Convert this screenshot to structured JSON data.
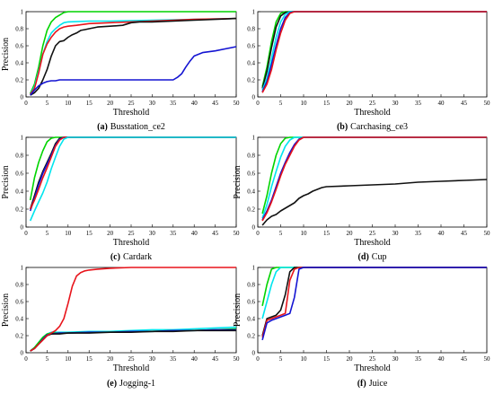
{
  "chart_data": [
    {
      "type": "line",
      "caption_letter": "(a)",
      "caption_name": "Busstation_ce2",
      "xlabel": "Threshold",
      "ylabel": "Precision",
      "xlim": [
        0,
        50
      ],
      "ylim": [
        0,
        1
      ],
      "x_ticks": [
        "0",
        "5",
        "10",
        "15",
        "20",
        "25",
        "30",
        "35",
        "40",
        "45",
        "50"
      ],
      "y_ticks": [
        "0",
        "0.2",
        "0.4",
        "0.6",
        "0.8",
        "1"
      ],
      "series": [
        {
          "color": "#00d400",
          "x": [
            1,
            2,
            3,
            4,
            5,
            6,
            7,
            8,
            9,
            10,
            12,
            15,
            20,
            30,
            40,
            50
          ],
          "y": [
            0.04,
            0.15,
            0.35,
            0.6,
            0.78,
            0.88,
            0.93,
            0.96,
            0.99,
            1.0,
            1.0,
            1.0,
            1.0,
            1.0,
            1.0,
            1.0
          ]
        },
        {
          "color": "#00e5ee",
          "x": [
            1,
            2,
            3,
            4,
            5,
            6,
            7,
            8,
            9,
            10,
            15,
            20,
            30,
            40,
            50
          ],
          "y": [
            0.03,
            0.12,
            0.3,
            0.5,
            0.65,
            0.75,
            0.8,
            0.84,
            0.87,
            0.88,
            0.89,
            0.89,
            0.9,
            0.91,
            0.92
          ]
        },
        {
          "color": "#e8141b",
          "x": [
            1,
            2,
            3,
            4,
            5,
            6,
            7,
            8,
            9,
            10,
            12,
            15,
            20,
            25,
            30,
            40,
            50
          ],
          "y": [
            0.03,
            0.1,
            0.28,
            0.5,
            0.62,
            0.7,
            0.76,
            0.8,
            0.82,
            0.83,
            0.84,
            0.86,
            0.87,
            0.88,
            0.89,
            0.91,
            0.92
          ]
        },
        {
          "color": "#111111",
          "x": [
            1,
            2,
            3,
            4,
            5,
            6,
            7,
            8,
            9,
            10,
            11,
            12,
            13,
            14,
            15,
            17,
            20,
            23,
            25,
            27,
            30,
            40,
            50
          ],
          "y": [
            0.02,
            0.05,
            0.1,
            0.2,
            0.32,
            0.48,
            0.6,
            0.65,
            0.66,
            0.7,
            0.73,
            0.75,
            0.78,
            0.79,
            0.8,
            0.82,
            0.83,
            0.84,
            0.87,
            0.88,
            0.88,
            0.9,
            0.92
          ]
        },
        {
          "color": "#1414d2",
          "x": [
            1,
            2,
            3,
            4,
            5,
            6,
            7,
            8,
            10,
            15,
            20,
            25,
            30,
            35,
            36,
            37,
            38,
            39,
            40,
            42,
            45,
            48,
            50
          ],
          "y": [
            0.02,
            0.08,
            0.13,
            0.16,
            0.18,
            0.19,
            0.19,
            0.2,
            0.2,
            0.2,
            0.2,
            0.2,
            0.2,
            0.2,
            0.23,
            0.27,
            0.35,
            0.42,
            0.48,
            0.52,
            0.54,
            0.57,
            0.59
          ]
        }
      ]
    },
    {
      "type": "line",
      "caption_letter": "(b)",
      "caption_name": "Carchasing_ce3",
      "xlabel": "Threshold",
      "ylabel": "",
      "xlim": [
        0,
        50
      ],
      "ylim": [
        0,
        1
      ],
      "x_ticks": [
        "0",
        "5",
        "10",
        "15",
        "20",
        "25",
        "30",
        "35",
        "40",
        "45",
        "50"
      ],
      "y_ticks": [
        "0",
        "0.2",
        "0.4",
        "0.6",
        "0.8",
        "1"
      ],
      "series": [
        {
          "color": "#00d400",
          "x": [
            1,
            2,
            3,
            4,
            5,
            6,
            7,
            10,
            50
          ],
          "y": [
            0.12,
            0.35,
            0.65,
            0.88,
            0.98,
            1.0,
            1.0,
            1.0,
            1.0
          ]
        },
        {
          "color": "#111111",
          "x": [
            1,
            2,
            3,
            4,
            5,
            6,
            7,
            8,
            10,
            50
          ],
          "y": [
            0.1,
            0.3,
            0.58,
            0.82,
            0.95,
            0.99,
            1.0,
            1.0,
            1.0,
            1.0
          ]
        },
        {
          "color": "#00e5ee",
          "x": [
            1,
            2,
            3,
            4,
            5,
            6,
            7,
            8,
            10,
            50
          ],
          "y": [
            0.08,
            0.22,
            0.45,
            0.7,
            0.88,
            0.97,
            1.0,
            1.0,
            1.0,
            1.0
          ]
        },
        {
          "color": "#1414d2",
          "x": [
            1,
            2,
            3,
            4,
            5,
            6,
            7,
            8,
            9,
            10,
            50
          ],
          "y": [
            0.06,
            0.18,
            0.38,
            0.6,
            0.8,
            0.93,
            0.99,
            1.0,
            1.0,
            1.0,
            1.0
          ]
        },
        {
          "color": "#e8141b",
          "x": [
            1,
            2,
            3,
            4,
            5,
            6,
            7,
            8,
            9,
            10,
            50
          ],
          "y": [
            0.05,
            0.15,
            0.32,
            0.55,
            0.75,
            0.9,
            0.98,
            1.0,
            1.0,
            1.0,
            1.0
          ]
        }
      ]
    },
    {
      "type": "line",
      "caption_letter": "(c)",
      "caption_name": "Cardark",
      "xlabel": "Threshold",
      "ylabel": "Precision",
      "xlim": [
        0,
        50
      ],
      "ylim": [
        0,
        1
      ],
      "x_ticks": [
        "0",
        "5",
        "10",
        "15",
        "20",
        "25",
        "30",
        "35",
        "40",
        "45",
        "50"
      ],
      "y_ticks": [
        "0",
        "0.2",
        "0.4",
        "0.6",
        "0.8",
        "1"
      ],
      "series": [
        {
          "color": "#00d400",
          "x": [
            1,
            2,
            3,
            4,
            5,
            6,
            7,
            8,
            10,
            50
          ],
          "y": [
            0.3,
            0.55,
            0.72,
            0.85,
            0.95,
            0.99,
            1.0,
            1.0,
            1.0,
            1.0
          ]
        },
        {
          "color": "#111111",
          "x": [
            1,
            2,
            3,
            4,
            5,
            6,
            7,
            8,
            9,
            10,
            50
          ],
          "y": [
            0.2,
            0.35,
            0.5,
            0.62,
            0.72,
            0.82,
            0.93,
            0.99,
            1.0,
            1.0,
            1.0
          ]
        },
        {
          "color": "#1414d2",
          "x": [
            1,
            2,
            3,
            4,
            5,
            6,
            7,
            8,
            9,
            10,
            50
          ],
          "y": [
            0.18,
            0.32,
            0.47,
            0.6,
            0.7,
            0.8,
            0.91,
            0.98,
            1.0,
            1.0,
            1.0
          ]
        },
        {
          "color": "#e8141b",
          "x": [
            1,
            2,
            3,
            4,
            5,
            6,
            7,
            8,
            9,
            10,
            50
          ],
          "y": [
            0.2,
            0.3,
            0.42,
            0.55,
            0.66,
            0.78,
            0.9,
            0.97,
            1.0,
            1.0,
            1.0
          ]
        },
        {
          "color": "#00e5ee",
          "x": [
            1,
            2,
            3,
            4,
            5,
            6,
            7,
            8,
            9,
            10,
            50
          ],
          "y": [
            0.07,
            0.18,
            0.28,
            0.38,
            0.5,
            0.65,
            0.78,
            0.9,
            0.98,
            1.0,
            1.0
          ]
        }
      ]
    },
    {
      "type": "line",
      "caption_letter": "(d)",
      "caption_name": "Cup",
      "xlabel": "Threshold",
      "ylabel": "Precision",
      "xlim": [
        0,
        50
      ],
      "ylim": [
        0,
        1
      ],
      "x_ticks": [
        "0",
        "5",
        "10",
        "15",
        "20",
        "25",
        "30",
        "35",
        "40",
        "45",
        "50"
      ],
      "y_ticks": [
        "0",
        "0.2",
        "0.4",
        "0.6",
        "0.8",
        "1"
      ],
      "series": [
        {
          "color": "#00d400",
          "x": [
            1,
            2,
            3,
            4,
            5,
            6,
            7,
            8,
            10,
            50
          ],
          "y": [
            0.15,
            0.35,
            0.6,
            0.8,
            0.93,
            0.99,
            1.0,
            1.0,
            1.0,
            1.0
          ]
        },
        {
          "color": "#00e5ee",
          "x": [
            1,
            2,
            3,
            4,
            5,
            6,
            7,
            8,
            9,
            10,
            50
          ],
          "y": [
            0.1,
            0.25,
            0.45,
            0.62,
            0.78,
            0.9,
            0.97,
            1.0,
            1.0,
            1.0,
            1.0
          ]
        },
        {
          "color": "#1414d2",
          "x": [
            1,
            2,
            3,
            4,
            5,
            6,
            7,
            8,
            9,
            10,
            11,
            50
          ],
          "y": [
            0.08,
            0.18,
            0.3,
            0.45,
            0.6,
            0.72,
            0.83,
            0.92,
            0.98,
            1.0,
            1.0,
            1.0
          ]
        },
        {
          "color": "#e8141b",
          "x": [
            1,
            2,
            3,
            4,
            5,
            6,
            7,
            8,
            9,
            10,
            11,
            50
          ],
          "y": [
            0.07,
            0.16,
            0.28,
            0.42,
            0.57,
            0.7,
            0.8,
            0.9,
            0.97,
            1.0,
            1.0,
            1.0
          ]
        },
        {
          "color": "#111111",
          "x": [
            1,
            2,
            3,
            4,
            5,
            6,
            7,
            8,
            9,
            10,
            11,
            12,
            13,
            14,
            15,
            20,
            25,
            30,
            35,
            40,
            45,
            50
          ],
          "y": [
            0.02,
            0.08,
            0.12,
            0.14,
            0.18,
            0.21,
            0.24,
            0.27,
            0.32,
            0.35,
            0.37,
            0.4,
            0.42,
            0.44,
            0.45,
            0.46,
            0.47,
            0.48,
            0.5,
            0.51,
            0.52,
            0.53
          ]
        }
      ]
    },
    {
      "type": "line",
      "caption_letter": "(e)",
      "caption_name": "Jogging-1",
      "xlabel": "Threshold",
      "ylabel": "Precision",
      "xlim": [
        0,
        50
      ],
      "ylim": [
        0,
        1
      ],
      "x_ticks": [
        "0",
        "5",
        "10",
        "15",
        "20",
        "25",
        "30",
        "35",
        "40",
        "45",
        "50"
      ],
      "y_ticks": [
        "0",
        "0.2",
        "0.4",
        "0.6",
        "0.8",
        "1"
      ],
      "series": [
        {
          "color": "#00e5ee",
          "x": [
            1,
            2,
            3,
            4,
            5,
            6,
            8,
            10,
            15,
            20,
            25,
            30,
            35,
            40,
            45,
            50
          ],
          "y": [
            0.02,
            0.06,
            0.12,
            0.18,
            0.22,
            0.24,
            0.24,
            0.24,
            0.25,
            0.25,
            0.26,
            0.27,
            0.27,
            0.28,
            0.29,
            0.3
          ]
        },
        {
          "color": "#00d400",
          "x": [
            1,
            2,
            3,
            4,
            5,
            6,
            8,
            10,
            15,
            20,
            25,
            30,
            35,
            40,
            45,
            50
          ],
          "y": [
            0.02,
            0.06,
            0.12,
            0.18,
            0.22,
            0.23,
            0.23,
            0.23,
            0.24,
            0.24,
            0.25,
            0.25,
            0.26,
            0.26,
            0.27,
            0.28
          ]
        },
        {
          "color": "#1414d2",
          "x": [
            1,
            2,
            3,
            4,
            5,
            6,
            8,
            10,
            15,
            20,
            25,
            30,
            35,
            40,
            45,
            50
          ],
          "y": [
            0.02,
            0.05,
            0.1,
            0.16,
            0.21,
            0.22,
            0.23,
            0.23,
            0.24,
            0.24,
            0.25,
            0.25,
            0.26,
            0.26,
            0.27,
            0.27
          ]
        },
        {
          "color": "#111111",
          "x": [
            1,
            2,
            3,
            4,
            5,
            6,
            8,
            10,
            15,
            20,
            25,
            30,
            35,
            40,
            45,
            50
          ],
          "y": [
            0.02,
            0.05,
            0.1,
            0.15,
            0.2,
            0.22,
            0.22,
            0.23,
            0.23,
            0.24,
            0.24,
            0.25,
            0.25,
            0.26,
            0.26,
            0.26
          ]
        },
        {
          "color": "#e8141b",
          "x": [
            1,
            2,
            3,
            4,
            5,
            6,
            7,
            8,
            9,
            10,
            11,
            12,
            13,
            14,
            15,
            17,
            20,
            25,
            30,
            40,
            50
          ],
          "y": [
            0.02,
            0.05,
            0.1,
            0.15,
            0.2,
            0.23,
            0.26,
            0.31,
            0.4,
            0.58,
            0.78,
            0.9,
            0.94,
            0.96,
            0.97,
            0.98,
            0.99,
            1.0,
            1.0,
            1.0,
            1.0
          ]
        }
      ]
    },
    {
      "type": "line",
      "caption_letter": "(f)",
      "caption_name": "Juice",
      "xlabel": "Threshold",
      "ylabel": "Precision",
      "xlim": [
        0,
        50
      ],
      "ylim": [
        0,
        1
      ],
      "x_ticks": [
        "0",
        "5",
        "10",
        "15",
        "20",
        "25",
        "30",
        "35",
        "40",
        "45",
        "50"
      ],
      "y_ticks": [
        "0",
        "0.2",
        "0.4",
        "0.6",
        "0.8",
        "1"
      ],
      "series": [
        {
          "color": "#00d400",
          "x": [
            1,
            2,
            3,
            4,
            50
          ],
          "y": [
            0.55,
            0.8,
            0.98,
            1.0,
            1.0
          ]
        },
        {
          "color": "#00e5ee",
          "x": [
            1,
            2,
            3,
            4,
            5,
            6,
            50
          ],
          "y": [
            0.4,
            0.6,
            0.8,
            0.95,
            1.0,
            1.0,
            1.0
          ]
        },
        {
          "color": "#111111",
          "x": [
            1,
            2,
            3,
            4,
            5,
            6,
            7,
            8,
            50
          ],
          "y": [
            0.2,
            0.4,
            0.42,
            0.44,
            0.5,
            0.68,
            0.95,
            1.0,
            1.0
          ]
        },
        {
          "color": "#e8141b",
          "x": [
            1,
            2,
            3,
            4,
            5,
            6,
            7,
            8,
            9,
            50
          ],
          "y": [
            0.18,
            0.38,
            0.4,
            0.42,
            0.44,
            0.46,
            0.85,
            0.98,
            1.0,
            1.0
          ]
        },
        {
          "color": "#1414d2",
          "x": [
            1,
            2,
            3,
            4,
            5,
            6,
            7,
            8,
            9,
            10,
            50
          ],
          "y": [
            0.15,
            0.35,
            0.38,
            0.4,
            0.42,
            0.44,
            0.46,
            0.65,
            0.98,
            1.0,
            1.0
          ]
        }
      ]
    }
  ]
}
